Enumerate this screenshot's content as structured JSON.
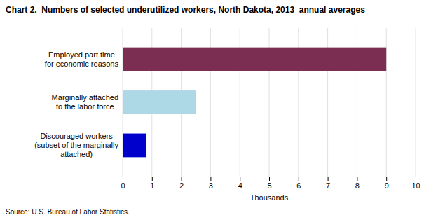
{
  "chart_data": {
    "type": "bar",
    "orientation": "horizontal",
    "title": "Chart 2.  Numbers of selected underutilized workers, North Dakota, 2013  annual averages",
    "categories": [
      "Discouraged workers\n(subset of the marginally\nattached)",
      "Marginally attached\nto the labor force",
      "Employed part time\nfor economic reasons"
    ],
    "values": [
      0.8,
      2.5,
      9.0
    ],
    "colors": [
      "#0000cc",
      "#add8e6",
      "#7b2d52"
    ],
    "xlim": [
      0,
      10
    ],
    "xticks": [
      0,
      1,
      2,
      3,
      4,
      5,
      6,
      7,
      8,
      9,
      10
    ],
    "xlabel": "Thousands",
    "source": "Source: U.S. Bureau of Labor Statistics.",
    "grid": true
  }
}
